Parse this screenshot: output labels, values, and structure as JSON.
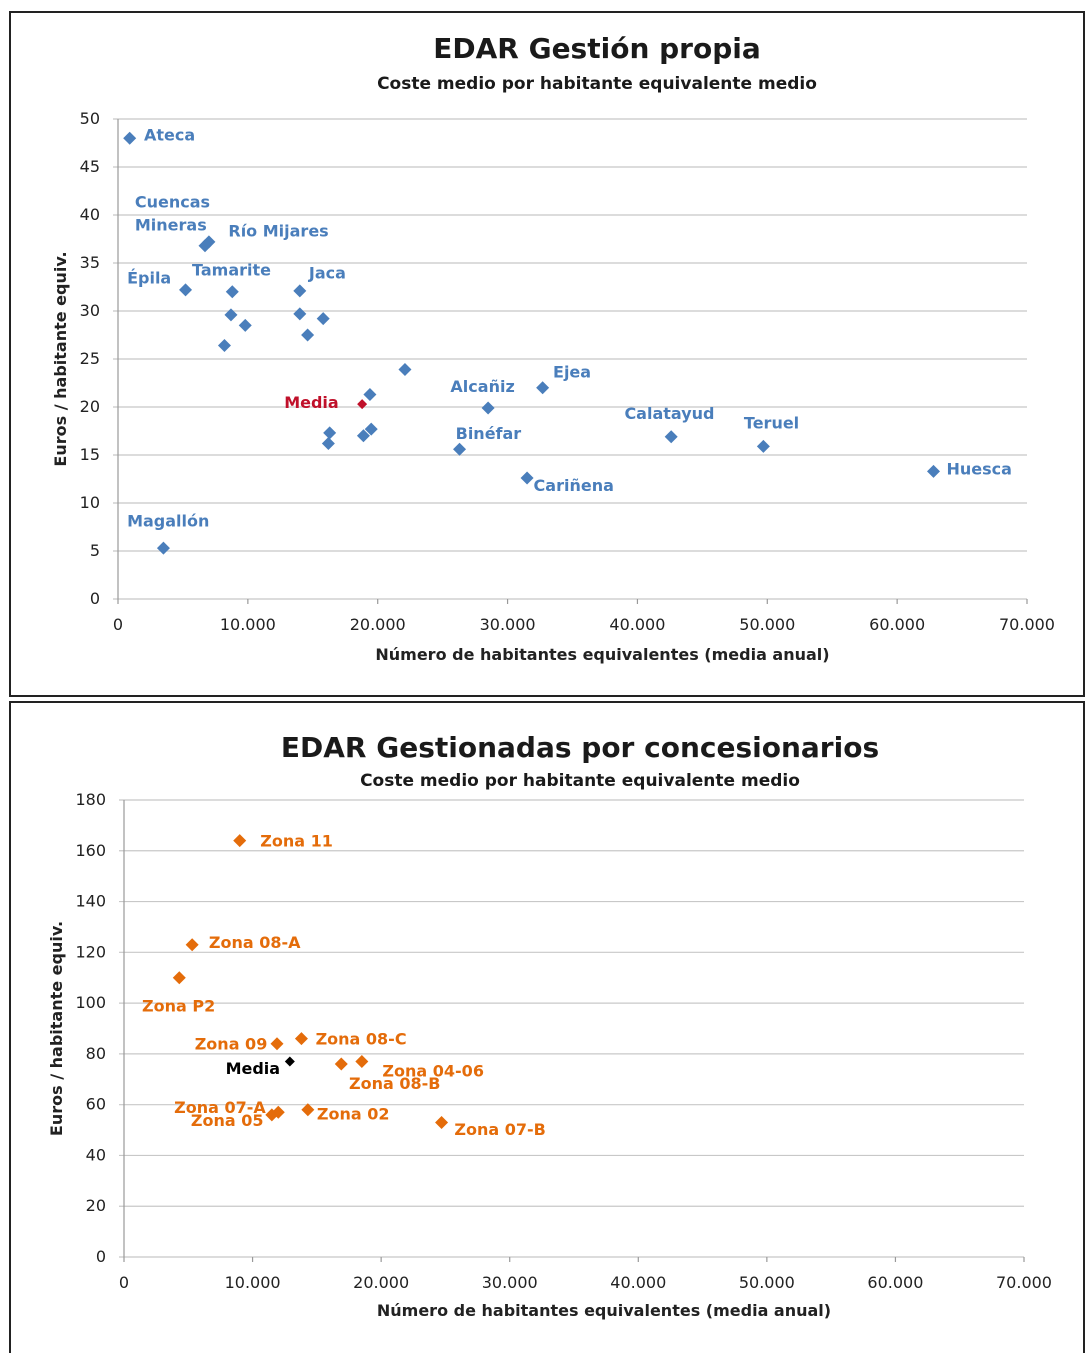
{
  "chart_data": [
    {
      "type": "scatter",
      "title": "EDAR Gestión propia",
      "subtitle": "Coste medio por habitante equivalente medio",
      "xlabel": "Número de habitantes equivalentes (media anual)",
      "ylabel": "Euros / habitante equiv.",
      "xlim": [
        0,
        70000
      ],
      "ylim": [
        0,
        50
      ],
      "xticks": [
        "0",
        "10.000",
        "20.000",
        "30.000",
        "40.000",
        "50.000",
        "60.000",
        "70.000"
      ],
      "yticks": [
        "0",
        "5",
        "10",
        "15",
        "20",
        "25",
        "30",
        "35",
        "40",
        "45",
        "50"
      ],
      "grid": "horizontal",
      "series_color": "#4a7ebb",
      "mean_color": "#c0102a",
      "points": [
        {
          "x": 900,
          "y": 48
        },
        {
          "x": 6700,
          "y": 36.8
        },
        {
          "x": 7000,
          "y": 37.2
        },
        {
          "x": 5200,
          "y": 32.2
        },
        {
          "x": 8800,
          "y": 32
        },
        {
          "x": 14000,
          "y": 32.1
        },
        {
          "x": 8700,
          "y": 29.6
        },
        {
          "x": 9800,
          "y": 28.5
        },
        {
          "x": 14000,
          "y": 29.7
        },
        {
          "x": 15800,
          "y": 29.2
        },
        {
          "x": 14600,
          "y": 27.5
        },
        {
          "x": 8200,
          "y": 26.4
        },
        {
          "x": 22100,
          "y": 23.9
        },
        {
          "x": 19400,
          "y": 21.3
        },
        {
          "x": 28500,
          "y": 19.9
        },
        {
          "x": 32700,
          "y": 22
        },
        {
          "x": 16300,
          "y": 17.3
        },
        {
          "x": 16200,
          "y": 16.2
        },
        {
          "x": 19500,
          "y": 17.7
        },
        {
          "x": 18900,
          "y": 17
        },
        {
          "x": 26300,
          "y": 15.6
        },
        {
          "x": 42600,
          "y": 16.9
        },
        {
          "x": 49700,
          "y": 15.9
        },
        {
          "x": 31500,
          "y": 12.6
        },
        {
          "x": 62800,
          "y": 13.3
        },
        {
          "x": 3500,
          "y": 5.3
        }
      ],
      "mean": {
        "x": 18800,
        "y": 20.3
      },
      "labels": [
        {
          "text": "Ateca",
          "x": 2000,
          "y": 48.4
        },
        {
          "text": "Cuencas",
          "x": 1300,
          "y": 41.4
        },
        {
          "text": "Mineras",
          "x": 1300,
          "y": 39
        },
        {
          "text": "Río Mijares",
          "x": 8500,
          "y": 38.4
        },
        {
          "text": "Épila",
          "x": 700,
          "y": 33.5
        },
        {
          "text": "Tamarite",
          "x": 5700,
          "y": 34.3
        },
        {
          "text": "Jaca",
          "x": 14700,
          "y": 34
        },
        {
          "text": "Media",
          "x": 12800,
          "y": 20.5,
          "mean": true
        },
        {
          "text": "Alcañiz",
          "x": 25600,
          "y": 22.2
        },
        {
          "text": "Ejea",
          "x": 33500,
          "y": 23.7
        },
        {
          "text": "Calatayud",
          "x": 39000,
          "y": 19.4
        },
        {
          "text": "Teruel",
          "x": 48200,
          "y": 18.4
        },
        {
          "text": "Binéfar",
          "x": 26000,
          "y": 17.3
        },
        {
          "text": "Cariñena",
          "x": 32000,
          "y": 11.9
        },
        {
          "text": "Huesca",
          "x": 63800,
          "y": 13.6
        },
        {
          "text": "Magallón",
          "x": 700,
          "y": 8.2
        }
      ]
    },
    {
      "type": "scatter",
      "title": "EDAR Gestionadas por concesionarios",
      "subtitle": "Coste medio por habitante equivalente  medio",
      "xlabel": "Número de habitantes equivalentes (media anual)",
      "ylabel": "Euros / habitante equiv.",
      "xlim": [
        0,
        70000
      ],
      "ylim": [
        0,
        180
      ],
      "xticks": [
        "0",
        "10.000",
        "20.000",
        "30.000",
        "40.000",
        "50.000",
        "60.000",
        "70.000"
      ],
      "yticks": [
        "0",
        "20",
        "40",
        "60",
        "80",
        "100",
        "120",
        "140",
        "160",
        "180"
      ],
      "grid": "horizontal",
      "series_color": "#e46c0a",
      "mean_color": "#000000",
      "points": [
        {
          "x": 9000,
          "y": 164
        },
        {
          "x": 5300,
          "y": 123
        },
        {
          "x": 4300,
          "y": 110
        },
        {
          "x": 11900,
          "y": 84
        },
        {
          "x": 13800,
          "y": 86
        },
        {
          "x": 16900,
          "y": 76
        },
        {
          "x": 18500,
          "y": 77
        },
        {
          "x": 12000,
          "y": 57
        },
        {
          "x": 11500,
          "y": 56
        },
        {
          "x": 14300,
          "y": 58
        },
        {
          "x": 24700,
          "y": 53
        }
      ],
      "mean": {
        "x": 12900,
        "y": 77
      },
      "labels": [
        {
          "text": "Zona 11",
          "x": 10600,
          "y": 164
        },
        {
          "text": "Zona 08-A",
          "x": 6600,
          "y": 124
        },
        {
          "text": "Zona P2",
          "x": 1400,
          "y": 99
        },
        {
          "text": "Zona 09",
          "x": 5500,
          "y": 84
        },
        {
          "text": "Zona 08-C",
          "x": 14900,
          "y": 86
        },
        {
          "text": "Media",
          "x": 7900,
          "y": 74.5,
          "mean": true
        },
        {
          "text": "Zona 04-06",
          "x": 20100,
          "y": 73.5
        },
        {
          "text": "Zona 08-B",
          "x": 17500,
          "y": 68.5
        },
        {
          "text": "Zona 07-A",
          "x": 3900,
          "y": 59
        },
        {
          "text": "Zona 05",
          "x": 5200,
          "y": 54
        },
        {
          "text": "Zona 02",
          "x": 15000,
          "y": 56.5
        },
        {
          "text": "Zona 07-B",
          "x": 25700,
          "y": 50.5
        }
      ]
    }
  ]
}
